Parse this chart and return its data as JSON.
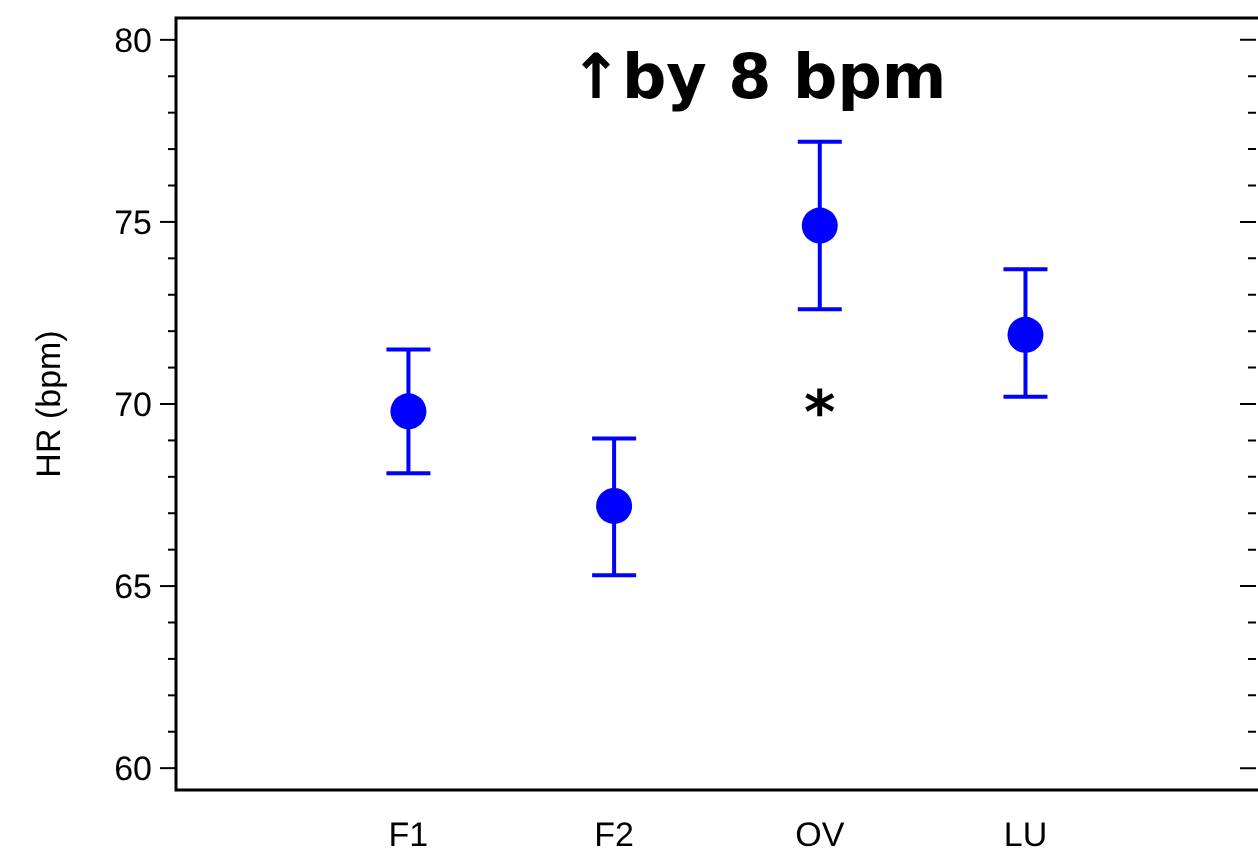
{
  "chart_data": {
    "type": "scatter",
    "categories": [
      "F1",
      "F2",
      "OV",
      "LU"
    ],
    "values": [
      69.8,
      67.2,
      74.9,
      71.9
    ],
    "errors": [
      [
        68.1,
        71.5
      ],
      [
        65.3,
        69.05
      ],
      [
        72.6,
        77.2
      ],
      [
        70.2,
        73.7
      ]
    ],
    "color": "#0000ff",
    "marker": "circle",
    "ylabel": "HR (bpm)",
    "ylim": [
      59.4,
      80.6
    ],
    "yticks": [
      60,
      {
        "value": 61,
        "label": null
      },
      {
        "value": 62,
        "label": null
      },
      {
        "value": 63,
        "label": null
      },
      {
        "value": 64,
        "label": null
      },
      65,
      {
        "value": 66,
        "label": null
      },
      {
        "value": 67,
        "label": null
      },
      {
        "value": 68,
        "label": null
      },
      {
        "value": 69,
        "label": null
      },
      70,
      {
        "value": 71,
        "label": null
      },
      {
        "value": 72,
        "label": null
      },
      {
        "value": 73,
        "label": null
      },
      {
        "value": 74,
        "label": null
      },
      75,
      {
        "value": 76,
        "label": null
      },
      {
        "value": 77,
        "label": null
      },
      {
        "value": 78,
        "label": null
      },
      {
        "value": 79,
        "label": null
      },
      80
    ],
    "annotations": [
      "↑by 8 bpm",
      "*"
    ],
    "grid": false
  }
}
